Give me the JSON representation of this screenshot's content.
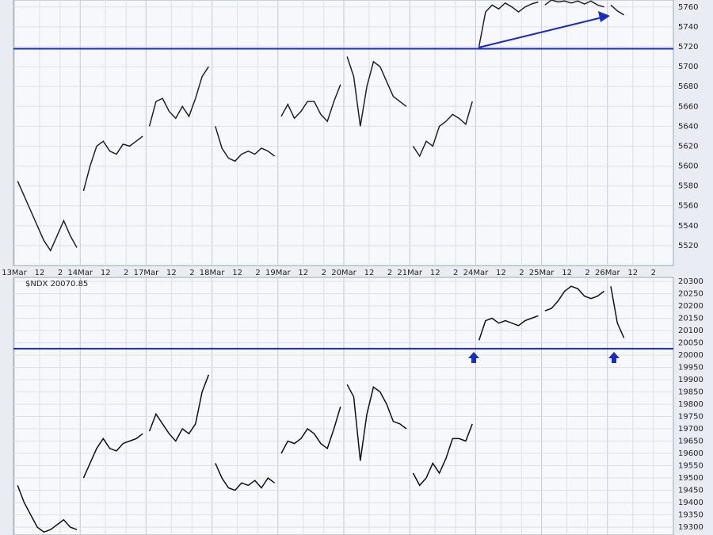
{
  "chart_data": [
    {
      "type": "price-line",
      "color": "#222222",
      "line_color": "#1a2dbf",
      "hline": 5718,
      "ylim": [
        5500,
        5767
      ],
      "yticks": [
        5520,
        5540,
        5560,
        5580,
        5600,
        5620,
        5640,
        5660,
        5680,
        5700,
        5720,
        5740,
        5760
      ],
      "xticks": [
        "13Mar",
        "12",
        "2",
        "14Mar",
        "12",
        "2",
        "17Mar",
        "12",
        "2",
        "18Mar",
        "12",
        "2",
        "19Mar",
        "12",
        "2",
        "20Mar",
        "12",
        "2",
        "21Mar",
        "12",
        "2",
        "24Mar",
        "12",
        "2",
        "25Mar",
        "12",
        "2",
        "26Mar",
        "12",
        "2"
      ],
      "values": [
        [
          5585,
          5570,
          5555,
          5540,
          5525,
          5515,
          5530,
          5545,
          5530,
          5518
        ],
        [
          5575,
          5600,
          5620,
          5625,
          5615,
          5612,
          5622,
          5620,
          5625,
          5630
        ],
        [
          5640,
          5665,
          5668,
          5655,
          5648,
          5660,
          5650,
          5668,
          5690,
          5700
        ],
        [
          5640,
          5618,
          5608,
          5605,
          5612,
          5615,
          5612,
          5618,
          5615,
          5610
        ],
        [
          5650,
          5662,
          5648,
          5655,
          5665,
          5665,
          5652,
          5645,
          5665,
          5682
        ],
        [
          5710,
          5690,
          5640,
          5680,
          5705,
          5700,
          5685,
          5670,
          5665,
          5660
        ],
        [
          5620,
          5610,
          5625,
          5620,
          5640,
          5645,
          5652,
          5648,
          5642,
          5665
        ],
        [
          5720,
          5755,
          5762,
          5758,
          5764,
          5760,
          5755,
          5760,
          5763,
          5765
        ],
        [
          5762,
          5767,
          5765,
          5766,
          5764,
          5766,
          5763,
          5766,
          5762,
          5760
        ],
        [
          5762,
          5756,
          5752
        ]
      ]
    },
    {
      "type": "price-line",
      "title": "$NDX 20070.85",
      "color": "#111111",
      "line_color": "#1a2dbf",
      "hline": 20026,
      "ylim": [
        19268,
        20316
      ],
      "yticks": [
        19300,
        19350,
        19400,
        19450,
        19500,
        19550,
        19600,
        19650,
        19700,
        19750,
        19800,
        19850,
        19900,
        19950,
        20000,
        20050,
        20100,
        20150,
        20200,
        20250,
        20300
      ],
      "values": [
        [
          19470,
          19400,
          19350,
          19300,
          19280,
          19290,
          19310,
          19330,
          19300,
          19290
        ],
        [
          19500,
          19560,
          19620,
          19660,
          19620,
          19610,
          19640,
          19650,
          19660,
          19680
        ],
        [
          19690,
          19760,
          19720,
          19680,
          19650,
          19700,
          19680,
          19720,
          19850,
          19920
        ],
        [
          19560,
          19500,
          19460,
          19450,
          19480,
          19470,
          19490,
          19460,
          19500,
          19480
        ],
        [
          19600,
          19650,
          19640,
          19660,
          19700,
          19680,
          19640,
          19620,
          19700,
          19790
        ],
        [
          19880,
          19830,
          19570,
          19760,
          19870,
          19850,
          19800,
          19730,
          19720,
          19700
        ],
        [
          19520,
          19470,
          19500,
          19560,
          19520,
          19580,
          19660,
          19660,
          19650,
          19720
        ],
        [
          20060,
          20140,
          20150,
          20130,
          20140,
          20130,
          20120,
          20140,
          20150,
          20160
        ],
        [
          20180,
          20190,
          20220,
          20260,
          20280,
          20270,
          20240,
          20230,
          20240,
          20260
        ],
        [
          20280,
          20130,
          20070
        ]
      ]
    }
  ]
}
